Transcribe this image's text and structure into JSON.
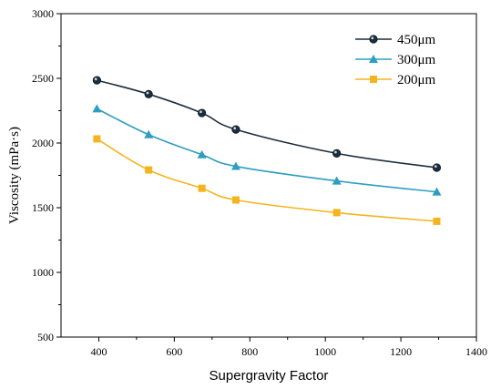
{
  "chart_data": {
    "type": "line",
    "xlabel": "Supergravity Factor",
    "ylabel": "Viscosity (mPa·s)",
    "xlim": [
      300,
      1400
    ],
    "ylim": [
      500,
      3000
    ],
    "x_ticks": [
      400,
      600,
      800,
      1000,
      1200,
      1400
    ],
    "y_ticks": [
      500,
      1000,
      1500,
      2000,
      2500,
      3000
    ],
    "x_tick_labels": [
      "400",
      "600",
      "800",
      "1000",
      "1200",
      "1400"
    ],
    "y_tick_labels": [
      "500",
      "1000",
      "1500",
      "2000",
      "2500",
      "3000"
    ],
    "grid": false,
    "legend_position": "top-right",
    "x": [
      395,
      532,
      673,
      763,
      1030,
      1295
    ],
    "series": [
      {
        "name": "450μm",
        "marker": "circle",
        "color": "#1c2e3d",
        "values": [
          2485,
          2378,
          2232,
          2105,
          1920,
          1810
        ]
      },
      {
        "name": "300μm",
        "marker": "triangle",
        "color": "#2e9ec0",
        "values": [
          2265,
          2065,
          1910,
          1820,
          1707,
          1622
        ]
      },
      {
        "name": "200μm",
        "marker": "square",
        "color": "#f5b41e",
        "values": [
          2032,
          1792,
          1650,
          1560,
          1462,
          1395
        ]
      }
    ]
  }
}
